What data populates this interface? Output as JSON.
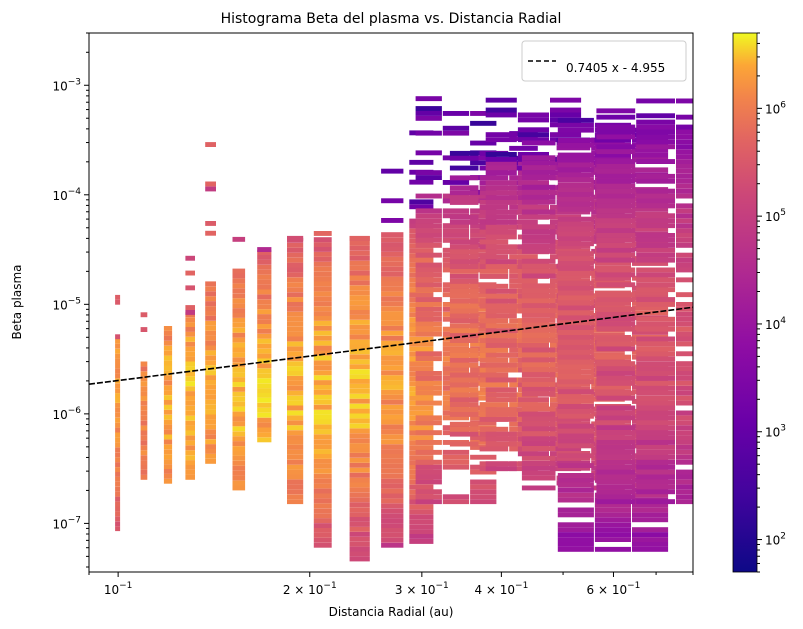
{
  "chart_data": {
    "type": "heatmap",
    "title": "Histograma Beta del plasma vs. Distancia Radial",
    "xlabel": "Distancia Radial (au)",
    "ylabel": "Beta plasma",
    "x_scale": "log",
    "y_scale": "log",
    "xlim": [
      0.09,
      0.8
    ],
    "ylim": [
      3.6e-08,
      0.003
    ],
    "x_ticks": [
      {
        "value": 0.1,
        "base": "10",
        "exp": "−1"
      },
      {
        "value": 0.2,
        "base": "2 × 10",
        "exp": "−1"
      },
      {
        "value": 0.3,
        "base": "3 × 10",
        "exp": "−1"
      },
      {
        "value": 0.4,
        "base": "4 × 10",
        "exp": "−1"
      },
      {
        "value": 0.6,
        "base": "6 × 10",
        "exp": "−1"
      }
    ],
    "y_ticks": [
      {
        "value": 1e-07,
        "base": "10",
        "exp": "−7"
      },
      {
        "value": 1e-06,
        "base": "10",
        "exp": "−6"
      },
      {
        "value": 1e-05,
        "base": "10",
        "exp": "−5"
      },
      {
        "value": 0.0001,
        "base": "10",
        "exp": "−4"
      },
      {
        "value": 0.001,
        "base": "10",
        "exp": "−3"
      }
    ],
    "fit_line": {
      "label": "0.7405 x - 4.955",
      "slope": 0.7405,
      "intercept": -4.955,
      "color": "#000000",
      "style": "dashed"
    },
    "legend_position": "upper right",
    "colorbar": {
      "scale": "log",
      "range": [
        50,
        5000000
      ],
      "colormap": "plasma",
      "ticks": [
        {
          "value": 100,
          "base": "10",
          "exp": "2"
        },
        {
          "value": 1000,
          "base": "10",
          "exp": "3"
        },
        {
          "value": 10000,
          "base": "10",
          "exp": "4"
        },
        {
          "value": 100000,
          "base": "10",
          "exp": "5"
        },
        {
          "value": 1000000,
          "base": "10",
          "exp": "6"
        }
      ]
    },
    "density_columns": [
      {
        "x": 0.1,
        "bmin": 8.5e-08,
        "bmax": 4.8e-06,
        "peak": 1.6e-06,
        "top": 1.3e-05,
        "count": 2000000
      },
      {
        "x": 0.11,
        "bmin": 2.5e-07,
        "bmax": 3e-06,
        "peak": 1.2e-06,
        "top": 1.5e-05,
        "count": 1500000
      },
      {
        "x": 0.12,
        "bmin": 2.3e-07,
        "bmax": 6e-06,
        "peak": 1.3e-06,
        "top": 6e-06,
        "count": 2500000
      },
      {
        "x": 0.13,
        "bmin": 2.5e-07,
        "bmax": 8e-06,
        "peak": 1.3e-06,
        "top": 7.5e-05,
        "count": 3000000
      },
      {
        "x": 0.14,
        "bmin": 3.5e-07,
        "bmax": 1.5e-05,
        "peak": 1.3e-06,
        "top": 0.00028,
        "count": 2500000
      },
      {
        "x": 0.155,
        "bmin": 2e-07,
        "bmax": 2e-05,
        "peak": 1.3e-06,
        "top": 4e-05,
        "count": 3000000
      },
      {
        "x": 0.17,
        "bmin": 5.5e-07,
        "bmax": 3e-05,
        "peak": 1.4e-06,
        "top": 4e-05,
        "count": 3000000
      },
      {
        "x": 0.19,
        "bmin": 1.5e-07,
        "bmax": 3.8e-05,
        "peak": 1.5e-06,
        "top": 5e-05,
        "count": 3000000
      },
      {
        "x": 0.21,
        "bmin": 6e-08,
        "bmax": 3.8e-05,
        "peak": 1.6e-06,
        "top": 5e-05,
        "count": 3000000
      },
      {
        "x": 0.24,
        "bmin": 4.5e-08,
        "bmax": 3.8e-05,
        "peak": 1.8e-06,
        "top": 7e-05,
        "count": 3000000
      },
      {
        "x": 0.27,
        "bmin": 6e-08,
        "bmax": 4.5e-05,
        "peak": 2e-06,
        "top": 0.0002,
        "count": 2000000
      },
      {
        "x": 0.3,
        "bmin": 6.5e-08,
        "bmax": 6e-05,
        "peak": 2.2e-06,
        "top": 0.00075,
        "count": 2000000
      },
      {
        "x": 0.34,
        "bmin": 1.5e-07,
        "bmax": 0.0001,
        "peak": 2.5e-06,
        "top": 0.00075,
        "count": 1000000
      },
      {
        "x": 0.39,
        "bmin": 3e-07,
        "bmax": 0.00015,
        "peak": 3e-06,
        "top": 0.00035,
        "count": 800000
      },
      {
        "x": 0.45,
        "bmin": 3e-07,
        "bmax": 0.0002,
        "peak": 3.5e-06,
        "top": 0.00075,
        "count": 600000
      },
      {
        "x": 0.52,
        "bmin": 2e-07,
        "bmax": 0.0003,
        "peak": 3.5e-06,
        "top": 0.0003,
        "count": 500000
      },
      {
        "x": 0.6,
        "bmin": 5.5e-08,
        "bmax": 0.0003,
        "peak": 4e-06,
        "top": 0.0005,
        "count": 400000
      },
      {
        "x": 0.7,
        "bmin": 1.5e-07,
        "bmax": 0.0005,
        "peak": 5e-06,
        "top": 0.00075,
        "count": 300000
      }
    ]
  }
}
